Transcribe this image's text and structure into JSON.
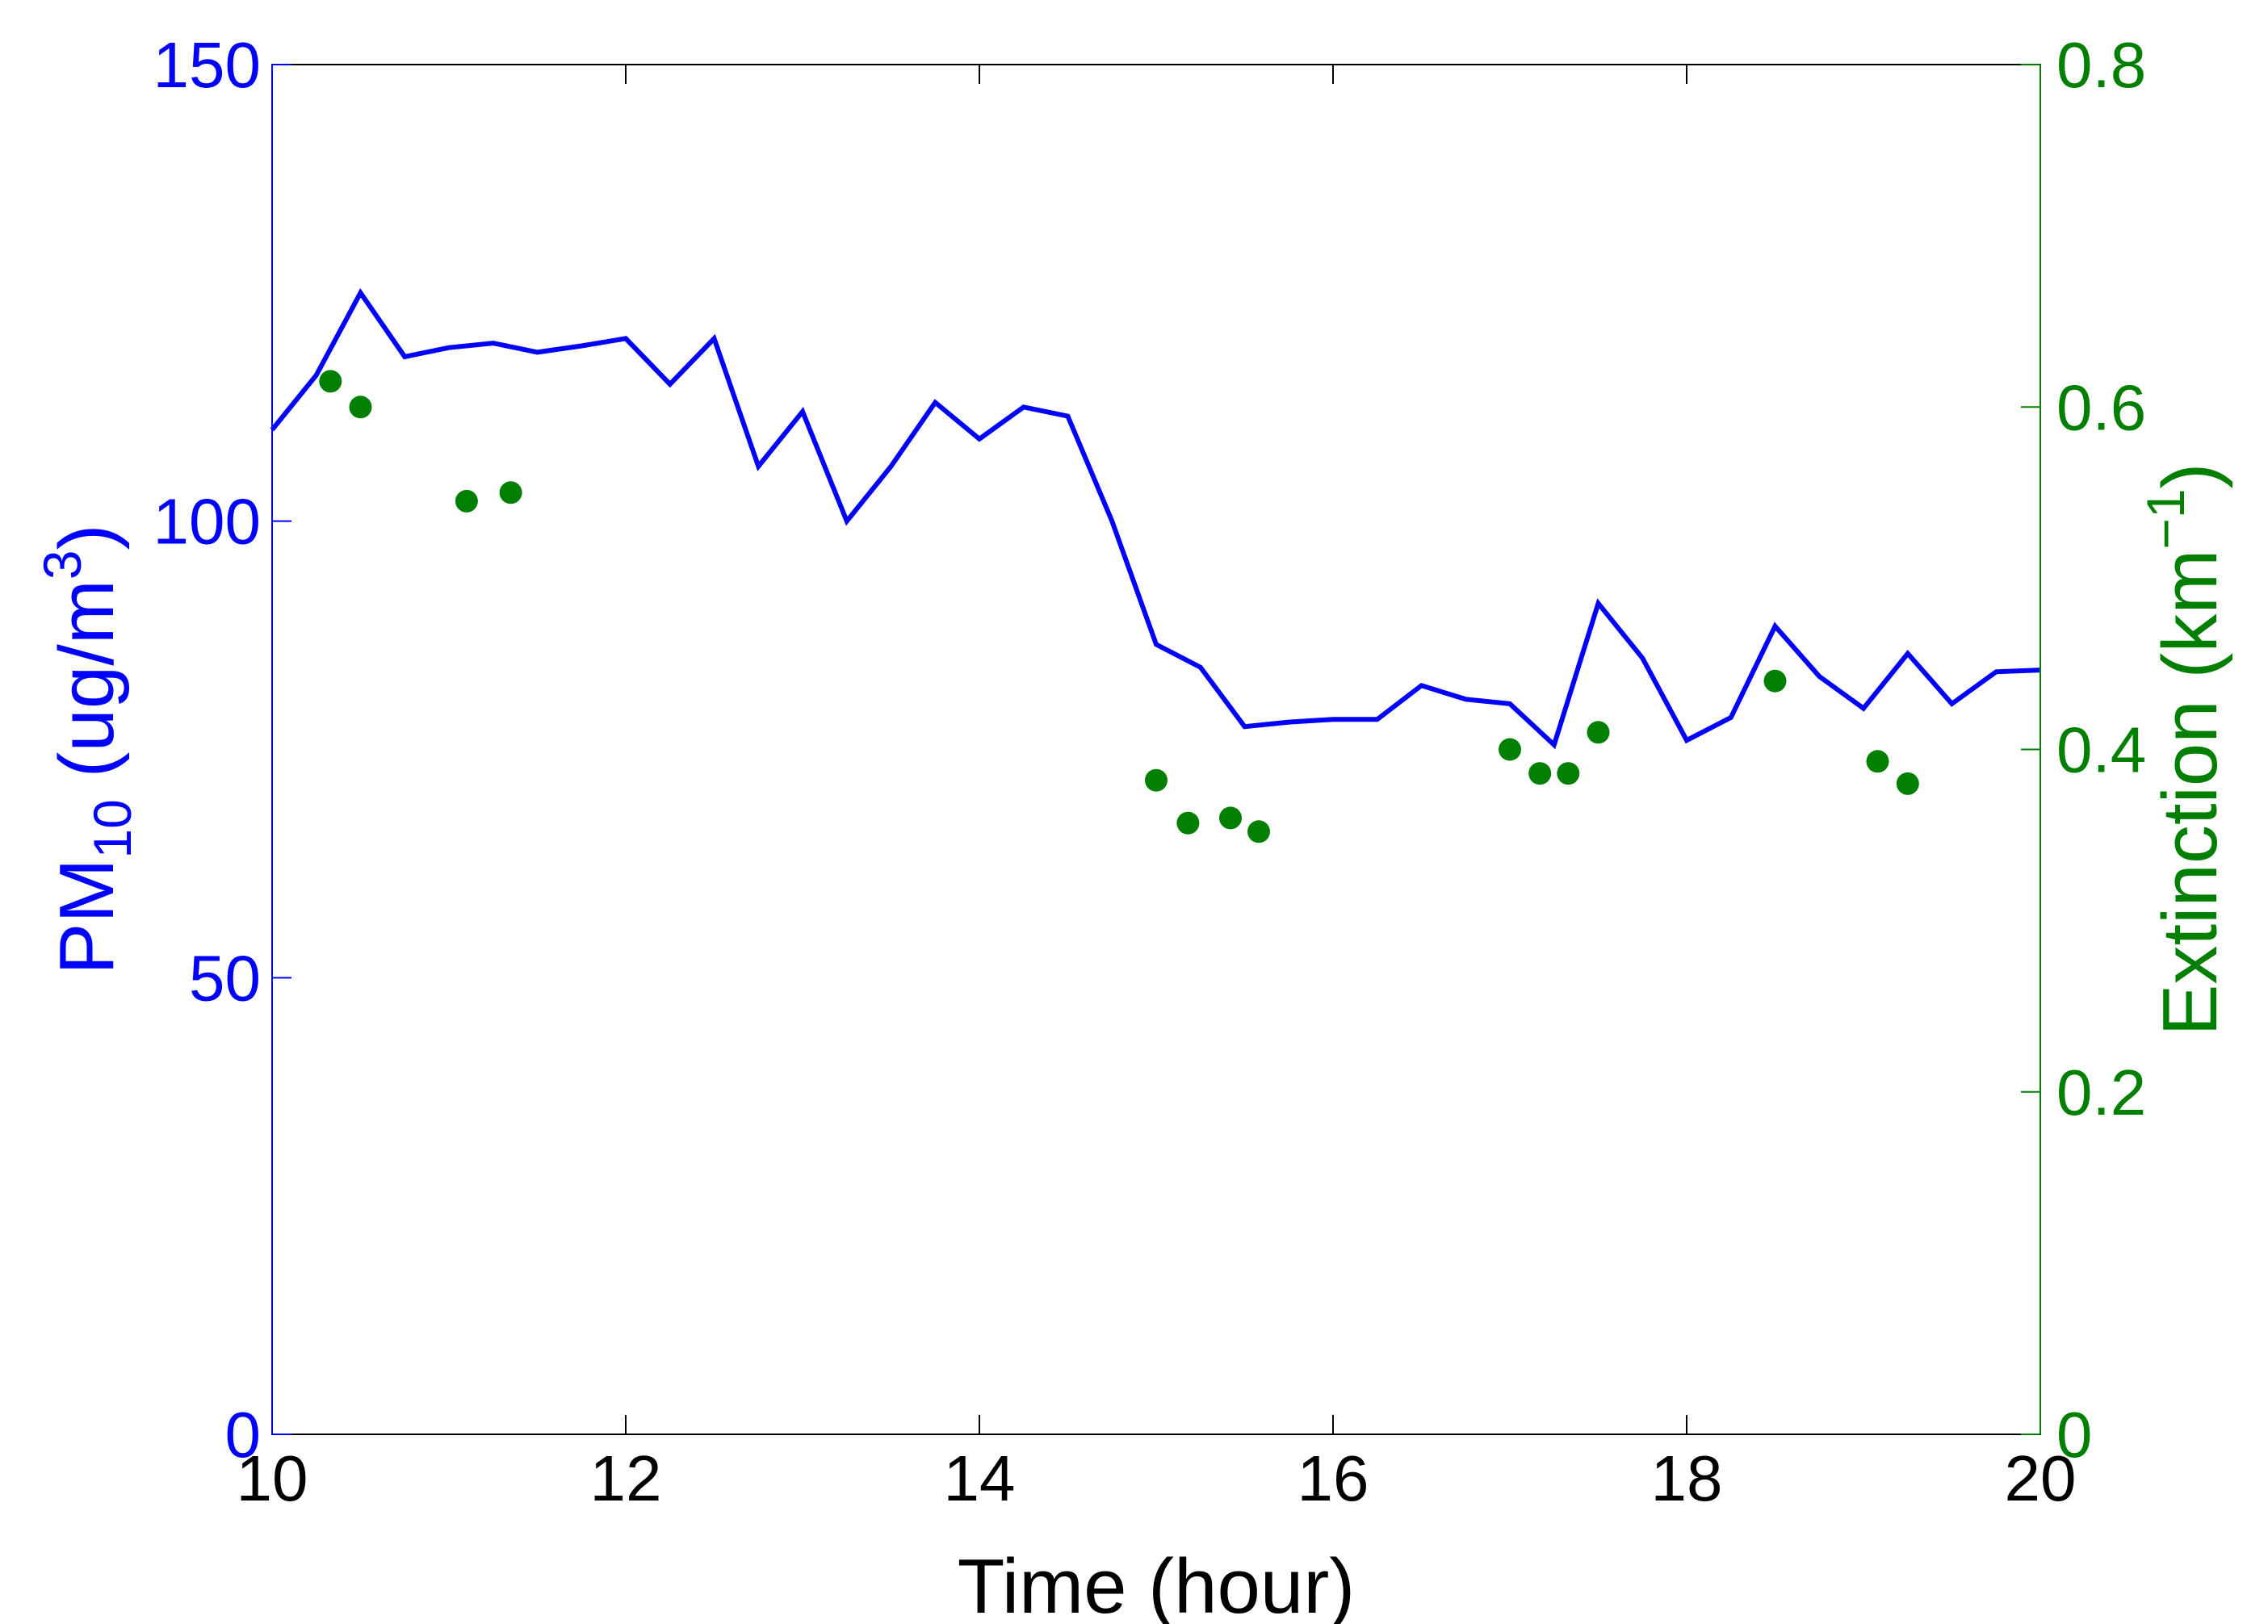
{
  "chart_data": {
    "type": "line",
    "xlabel": "Time (hour)",
    "xlim": [
      10,
      20
    ],
    "x_ticks": [
      10,
      12,
      14,
      16,
      18,
      20
    ],
    "ylabel_left": {
      "main": "PM",
      "sub": "10",
      "unit_open": " (ug/m",
      "sup": "3",
      "unit_close": ")"
    },
    "ylim_left": [
      0,
      150
    ],
    "y_ticks_left": [
      0,
      50,
      100,
      150
    ],
    "ylabel_right": {
      "main": "Extinction (km",
      "sup": "−1",
      "close": ")"
    },
    "ylim_right": [
      0,
      0.8
    ],
    "y_ticks_right": [
      0,
      0.2,
      0.4,
      0.6,
      0.8
    ],
    "grid": false,
    "colors": {
      "left_axis": "#0000ff",
      "right_axis": "#007f00"
    },
    "series": [
      {
        "axis": "left",
        "style": "line",
        "color": "#0000ff",
        "x": [
          10.0,
          10.25,
          10.5,
          10.75,
          11.0,
          11.25,
          11.5,
          11.75,
          12.0,
          12.25,
          12.5,
          12.75,
          13.0,
          13.25,
          13.5,
          13.75,
          14.0,
          14.25,
          14.5,
          14.75,
          15.0,
          15.25,
          15.5,
          15.75,
          16.0,
          16.25,
          16.5,
          16.75,
          17.0,
          17.25,
          17.5,
          17.75,
          18.0,
          18.25,
          18.5,
          18.75,
          19.0,
          19.25,
          19.5,
          19.75,
          20.0
        ],
        "values": [
          110,
          116,
          125,
          118,
          119,
          119.5,
          118.5,
          119.2,
          120,
          115,
          120,
          106,
          112,
          100,
          106,
          113,
          109,
          112.5,
          111.5,
          100,
          86.5,
          84,
          77.5,
          78,
          78.3,
          78.3,
          82,
          80.5,
          80,
          75.5,
          91,
          85,
          76,
          78.5,
          88.5,
          83,
          79.5,
          85.5,
          80,
          83.5,
          83.7
        ]
      },
      {
        "axis": "right",
        "style": "scatter",
        "color": "#007f00",
        "x": [
          10.33,
          10.5,
          11.1,
          11.35,
          15.0,
          15.18,
          15.42,
          15.58,
          17.0,
          17.17,
          17.33,
          17.5,
          18.5,
          19.08,
          19.25
        ],
        "values": [
          0.615,
          0.6,
          0.545,
          0.55,
          0.382,
          0.357,
          0.36,
          0.352,
          0.4,
          0.386,
          0.386,
          0.41,
          0.44,
          0.393,
          0.38
        ]
      }
    ]
  }
}
